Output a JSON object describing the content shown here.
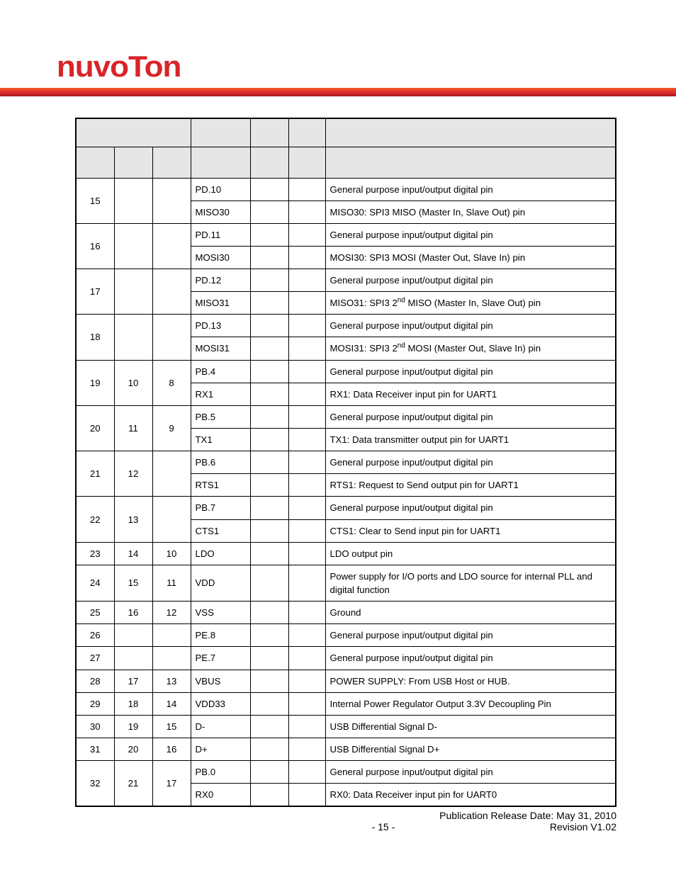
{
  "brand": {
    "name": "nuvoTon",
    "color": "#d8252a"
  },
  "bar": {
    "gradient_top": "#f15a24",
    "gradient_mid": "#d8252a",
    "gradient_bot": "#a01a1e"
  },
  "table": {
    "header_bg": "#e6e6e6",
    "border_color": "#000000",
    "column_count": 7,
    "rows": [
      {
        "c1": "15",
        "c2": "",
        "c3": "",
        "pin": "PD.10",
        "desc": "General purpose input/output digital pin"
      },
      {
        "pin": "MISO30",
        "desc": "MISO30: SPI3 MISO (Master In, Slave Out) pin"
      },
      {
        "c1": "16",
        "c2": "",
        "c3": "",
        "pin": "PD.11",
        "desc": "General purpose input/output digital pin"
      },
      {
        "pin": "MOSI30",
        "desc": "MOSI30: SPI3 MOSI (Master Out, Slave In) pin"
      },
      {
        "c1": "17",
        "c2": "",
        "c3": "",
        "pin": "PD.12",
        "desc": "General purpose input/output digital pin"
      },
      {
        "pin": "MISO31",
        "desc_html": "MISO31: SPI3 2<sup>nd</sup> MISO (Master In, Slave Out) pin"
      },
      {
        "c1": "18",
        "c2": "",
        "c3": "",
        "pin": "PD.13",
        "desc": "General purpose input/output digital pin"
      },
      {
        "pin": "MOSI31",
        "desc_html": "MOSI31: SPI3 2<sup>nd</sup> MOSI (Master Out, Slave In) pin"
      },
      {
        "c1": "19",
        "c2": "10",
        "c3": "8",
        "pin": "PB.4",
        "desc": "General purpose input/output digital pin"
      },
      {
        "pin": "RX1",
        "desc": "RX1: Data Receiver input pin for UART1"
      },
      {
        "c1": "20",
        "c2": "11",
        "c3": "9",
        "pin": "PB.5",
        "desc": "General purpose input/output digital pin"
      },
      {
        "pin": "TX1",
        "desc": "TX1: Data transmitter output pin for UART1"
      },
      {
        "c1": "21",
        "c2": "12",
        "c3": "",
        "pin": "PB.6",
        "desc": "General purpose input/output digital pin"
      },
      {
        "pin": "RTS1",
        "desc": "RTS1: Request to Send output pin for UART1"
      },
      {
        "c1": "22",
        "c2": "13",
        "c3": "",
        "pin": "PB.7",
        "desc": "General purpose input/output digital pin"
      },
      {
        "pin": "CTS1",
        "desc": "CTS1: Clear to Send input pin for UART1"
      },
      {
        "c1": "23",
        "c2": "14",
        "c3": "10",
        "pin": "LDO",
        "desc": "LDO output pin",
        "rowspan": 1
      },
      {
        "c1": "24",
        "c2": "15",
        "c3": "11",
        "pin": "VDD",
        "desc": "Power supply for I/O ports and LDO source for internal PLL and digital function",
        "rowspan": 1
      },
      {
        "c1": "25",
        "c2": "16",
        "c3": "12",
        "pin": "VSS",
        "desc": "Ground",
        "rowspan": 1
      },
      {
        "c1": "26",
        "c2": "",
        "c3": "",
        "pin": "PE.8",
        "desc": "General purpose input/output digital pin",
        "rowspan": 1
      },
      {
        "c1": "27",
        "c2": "",
        "c3": "",
        "pin": "PE.7",
        "desc": "General purpose input/output digital pin",
        "rowspan": 1
      },
      {
        "c1": "28",
        "c2": "17",
        "c3": "13",
        "pin": "VBUS",
        "desc": "POWER SUPPLY: From USB Host or HUB.",
        "rowspan": 1
      },
      {
        "c1": "29",
        "c2": "18",
        "c3": "14",
        "pin": "VDD33",
        "desc": "Internal Power Regulator Output 3.3V Decoupling Pin",
        "rowspan": 1
      },
      {
        "c1": "30",
        "c2": "19",
        "c3": "15",
        "pin": "D-",
        "desc": "USB Differential Signal D-",
        "rowspan": 1
      },
      {
        "c1": "31",
        "c2": "20",
        "c3": "16",
        "pin": "D+",
        "desc": "USB Differential Signal D+",
        "rowspan": 1
      },
      {
        "c1": "32",
        "c2": "21",
        "c3": "17",
        "pin": "PB.0",
        "desc": "General purpose input/output digital pin"
      },
      {
        "pin": "RX0",
        "desc": "RX0: Data Receiver input pin for UART0"
      }
    ]
  },
  "footer": {
    "publication": "Publication Release Date: May 31, 2010",
    "page": "- 15 -",
    "revision": "Revision V1.02"
  }
}
